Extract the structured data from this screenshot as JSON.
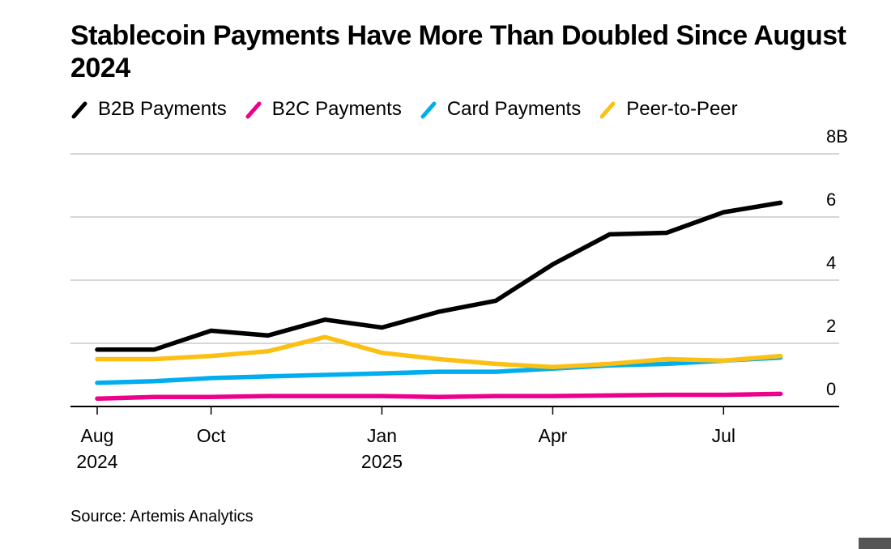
{
  "title": "Stablecoin Payments Have More Than Doubled Since August 2024",
  "source": "Source: Artemis Analytics",
  "legend": [
    {
      "name": "B2B Payments",
      "color": "#000000"
    },
    {
      "name": "B2C Payments",
      "color": "#ec008c"
    },
    {
      "name": "Card Payments",
      "color": "#00aeef"
    },
    {
      "name": "Peer-to-Peer",
      "color": "#fcc015"
    }
  ],
  "chart_data": {
    "type": "line",
    "title": "Stablecoin Payments Have More Than Doubled Since August 2024",
    "xlabel": "",
    "ylabel": "",
    "x": [
      "Aug 2024",
      "Sep 2024",
      "Oct 2024",
      "Nov 2024",
      "Dec 2024",
      "Jan 2025",
      "Feb 2025",
      "Mar 2025",
      "Apr 2025",
      "May 2025",
      "Jun 2025",
      "Jul 2025",
      "Aug 2025"
    ],
    "x_ticks": [
      {
        "index": 0,
        "label": "Aug",
        "sublabel": "2024"
      },
      {
        "index": 2,
        "label": "Oct",
        "sublabel": ""
      },
      {
        "index": 5,
        "label": "Jan",
        "sublabel": "2025"
      },
      {
        "index": 8,
        "label": "Apr",
        "sublabel": ""
      },
      {
        "index": 11,
        "label": "Jul",
        "sublabel": ""
      }
    ],
    "y_ticks": [
      {
        "value": 0,
        "label": "0"
      },
      {
        "value": 2,
        "label": "2"
      },
      {
        "value": 4,
        "label": "4"
      },
      {
        "value": 6,
        "label": "6"
      },
      {
        "value": 8,
        "label": "8B"
      }
    ],
    "ylim": [
      0,
      8
    ],
    "y_axis_position": "right",
    "grid": true,
    "legend_position": "top-left",
    "series": [
      {
        "name": "B2B Payments",
        "color": "#000000",
        "values": [
          1.8,
          1.8,
          2.4,
          2.25,
          2.75,
          2.5,
          3.0,
          3.35,
          4.5,
          5.45,
          5.5,
          6.15,
          6.45
        ]
      },
      {
        "name": "B2C Payments",
        "color": "#ec008c",
        "values": [
          0.25,
          0.3,
          0.3,
          0.33,
          0.33,
          0.33,
          0.3,
          0.33,
          0.33,
          0.35,
          0.37,
          0.37,
          0.4
        ]
      },
      {
        "name": "Card Payments",
        "color": "#00aeef",
        "values": [
          0.75,
          0.8,
          0.9,
          0.95,
          1.0,
          1.05,
          1.1,
          1.1,
          1.2,
          1.3,
          1.35,
          1.45,
          1.55
        ]
      },
      {
        "name": "Peer-to-Peer",
        "color": "#fcc015",
        "values": [
          1.5,
          1.5,
          1.6,
          1.75,
          2.2,
          1.7,
          1.5,
          1.35,
          1.25,
          1.35,
          1.5,
          1.45,
          1.6
        ]
      }
    ]
  }
}
